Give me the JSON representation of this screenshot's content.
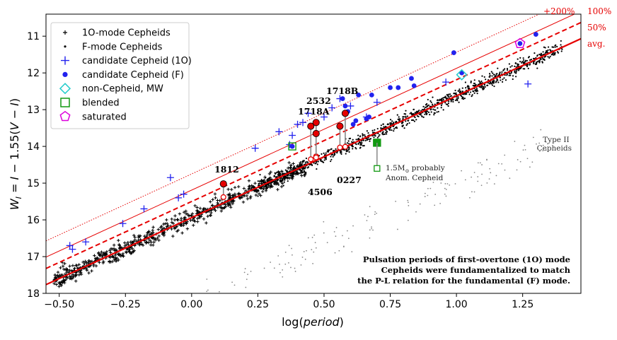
{
  "chart_data": {
    "type": "scatter",
    "xlabel": "log(period)",
    "ylabel": "W_I = I − 1.55(V − I)",
    "xlim": [
      -0.55,
      1.47
    ],
    "ylim": [
      18,
      10.4
    ],
    "y_inverted": true,
    "x_ticks": [
      -0.5,
      -0.25,
      0.0,
      0.25,
      0.5,
      0.75,
      1.0,
      1.25
    ],
    "x_tick_labels": [
      "−0.50",
      "−0.25",
      "0.00",
      "0.25",
      "0.50",
      "0.75",
      "1.00",
      "1.25"
    ],
    "y_ticks": [
      11,
      12,
      13,
      14,
      15,
      16,
      17,
      18
    ],
    "y_tick_labels": [
      "11",
      "12",
      "13",
      "14",
      "15",
      "16",
      "17",
      "18"
    ],
    "pl_relation": {
      "slope": -3.314,
      "intercept": 15.94
    },
    "offset_lines": [
      {
        "label": "avg.",
        "offset": 0.0,
        "style": "solid-thick"
      },
      {
        "label": "50%",
        "offset": -0.44,
        "style": "dashed"
      },
      {
        "label": "100%",
        "offset": -0.75,
        "style": "solid-thin"
      },
      {
        "label": "+200%",
        "offset": -1.19,
        "style": "dotted"
      }
    ],
    "legend": [
      {
        "label": "1O-mode Cepheids",
        "marker": "plus-small",
        "color": "#000000"
      },
      {
        "label": "F-mode Cepheids",
        "marker": "dot-small",
        "color": "#000000"
      },
      {
        "label": "candidate Cepheid (1O)",
        "marker": "plus",
        "color": "#2222ee"
      },
      {
        "label": "candidate Cepheid (F)",
        "marker": "dot",
        "color": "#2222ee"
      },
      {
        "label": "non-Cepheid, MW",
        "marker": "diamond",
        "color": "#22cccc"
      },
      {
        "label": "blended",
        "marker": "square",
        "color": "#119911"
      },
      {
        "label": "saturated",
        "marker": "pentagon",
        "color": "#dd00dd"
      }
    ],
    "candidates_1O": [
      [
        -0.46,
        16.7
      ],
      [
        -0.45,
        16.8
      ],
      [
        -0.4,
        16.6
      ],
      [
        -0.26,
        16.1
      ],
      [
        -0.18,
        15.7
      ],
      [
        -0.08,
        14.85
      ],
      [
        -0.05,
        15.4
      ],
      [
        -0.03,
        15.3
      ],
      [
        0.24,
        14.05
      ],
      [
        0.33,
        13.6
      ],
      [
        0.37,
        13.95
      ],
      [
        0.38,
        13.7
      ],
      [
        0.4,
        13.4
      ],
      [
        0.42,
        13.35
      ],
      [
        0.44,
        13.1
      ],
      [
        0.5,
        13.2
      ],
      [
        0.53,
        12.95
      ],
      [
        0.56,
        12.7
      ],
      [
        0.6,
        12.9
      ],
      [
        0.66,
        13.2
      ],
      [
        0.7,
        12.8
      ],
      [
        0.96,
        12.25
      ],
      [
        1.27,
        12.3
      ]
    ],
    "candidates_F": [
      [
        0.38,
        14.0
      ],
      [
        0.57,
        12.7
      ],
      [
        0.58,
        12.9
      ],
      [
        0.59,
        13.05
      ],
      [
        0.61,
        13.4
      ],
      [
        0.62,
        13.3
      ],
      [
        0.63,
        12.6
      ],
      [
        0.66,
        13.25
      ],
      [
        0.67,
        13.2
      ],
      [
        0.68,
        12.6
      ],
      [
        0.75,
        12.4
      ],
      [
        0.78,
        12.4
      ],
      [
        0.83,
        12.15
      ],
      [
        0.84,
        12.35
      ],
      [
        0.99,
        11.45
      ],
      [
        1.02,
        12.0
      ],
      [
        1.24,
        11.2
      ],
      [
        1.3,
        10.95
      ]
    ],
    "non_cepheid_MW": [
      [
        1.02,
        12.05
      ]
    ],
    "blended": [
      [
        0.38,
        14.0
      ],
      [
        0.7,
        13.9
      ]
    ],
    "blended_corrected": [
      [
        0.7,
        14.6
      ]
    ],
    "saturated": [
      [
        1.24,
        11.2
      ]
    ],
    "highlighted": [
      {
        "name": "1812",
        "x": 0.12,
        "y_obs": 15.02,
        "y_pl": 15.38
      },
      {
        "name": "1718A",
        "x": 0.45,
        "y_obs": 13.45,
        "y_pl": 14.35
      },
      {
        "name": "1718B",
        "x": 0.47,
        "y_obs": 13.35,
        "y_pl": 14.27
      },
      {
        "name": "2532",
        "x": 0.47,
        "y_obs": 13.65,
        "y_pl": 14.3
      },
      {
        "name": "4506",
        "x": 0.56,
        "y_obs": 13.45,
        "y_pl": 14.03
      },
      {
        "name": "0227",
        "x": 0.58,
        "y_obs": 13.1,
        "y_pl": 14.01
      }
    ],
    "typeII_label": "Type II\nCepheids",
    "anomalous_label_line1": "1.5M",
    "anomalous_label_sub": "⊙",
    "anomalous_label_rest": " probably",
    "anomalous_label_line2": "Anom. Cepheid",
    "note_lines": [
      "Pulsation periods of first-overtone (1O) mode",
      "Cepheids were fundamentalized to match",
      "the P-L relation for the fundamental (F) mode."
    ],
    "point_labels": {
      "p1812": "1812",
      "p1718A": "1718A",
      "p1718B": "1718B",
      "p2532": "2532",
      "p4506": "4506",
      "p0227": "0227"
    },
    "offset_labels": {
      "plus200": "+200%",
      "p100": "100%",
      "p50": "50%",
      "avg": "avg."
    },
    "colors": {
      "red": "#e60000",
      "blue": "#2222ee",
      "cyan": "#22cccc",
      "green": "#119911",
      "magenta": "#dd00dd",
      "gray": "#888888"
    }
  }
}
